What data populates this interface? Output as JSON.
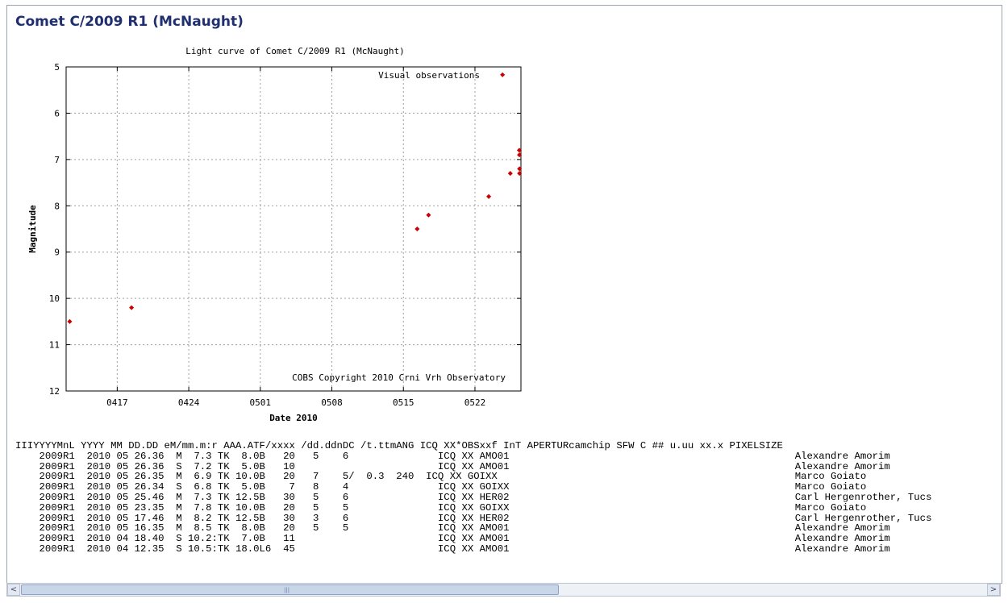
{
  "page": {
    "title": "Comet C/2009 R1 (McNaught)"
  },
  "chart_data": {
    "type": "scatter",
    "title": "Light curve of Comet C/2009 R1 (McNaught)",
    "xlabel": "Date 2010",
    "ylabel": "Magnitude",
    "x_unit": "date",
    "xlim": [
      "2010-04-12",
      "2010-05-26.5"
    ],
    "ylim": [
      12,
      5
    ],
    "y_inverted": true,
    "y_ticks": [
      5,
      6,
      7,
      8,
      9,
      10,
      11,
      12
    ],
    "x_ticks": [
      {
        "date": "2010-04-17",
        "label": "0417"
      },
      {
        "date": "2010-04-24",
        "label": "0424"
      },
      {
        "date": "2010-05-01",
        "label": "0501"
      },
      {
        "date": "2010-05-08",
        "label": "0508"
      },
      {
        "date": "2010-05-15",
        "label": "0515"
      },
      {
        "date": "2010-05-22",
        "label": "0522"
      }
    ],
    "grid": true,
    "legend_position": "top-right",
    "series": [
      {
        "name": "Visual observations",
        "color": "#cc0000",
        "points": [
          {
            "date": "2010-04-12.35",
            "mag": 10.5
          },
          {
            "date": "2010-04-18.40",
            "mag": 10.2
          },
          {
            "date": "2010-05-16.35",
            "mag": 8.5
          },
          {
            "date": "2010-05-17.46",
            "mag": 8.2
          },
          {
            "date": "2010-05-23.35",
            "mag": 7.8
          },
          {
            "date": "2010-05-24.70",
            "mag": 5.17
          },
          {
            "date": "2010-05-25.46",
            "mag": 7.3
          },
          {
            "date": "2010-05-26.34",
            "mag": 6.8
          },
          {
            "date": "2010-05-26.35",
            "mag": 6.9
          },
          {
            "date": "2010-05-26.36",
            "mag": 7.2
          },
          {
            "date": "2010-05-26.36",
            "mag": 7.3
          }
        ]
      }
    ],
    "annotation": "COBS Copyright 2010 Crni Vrh Observatory"
  },
  "observations": {
    "header": "IIIYYYYMnL YYYY MM DD.DD eM/mm.m:r AAA.ATF/xxxx /dd.ddnDC /t.ttmANG ICQ XX*OBSxxf InT APERTURcamchip SFW C ## u.uu xx.x PIXELSIZE",
    "rows": [
      {
        "line": "    2009R1  2010 05 26.36  M  7.3 TK  8.0B   20   5    6               ICQ XX AMO01",
        "observer": "Alexandre Amorim"
      },
      {
        "line": "    2009R1  2010 05 26.36  S  7.2 TK  5.0B   10                        ICQ XX AMO01",
        "observer": "Alexandre Amorim"
      },
      {
        "line": "    2009R1  2010 05 26.35  M  6.9 TK 10.0B   20   7    5/  0.3  240  ICQ XX GOIXX",
        "observer": "Marco Goiato"
      },
      {
        "line": "    2009R1  2010 05 26.34  S  6.8 TK  5.0B    7   8    4               ICQ XX GOIXX",
        "observer": "Marco Goiato"
      },
      {
        "line": "    2009R1  2010 05 25.46  M  7.3 TK 12.5B   30   5    6               ICQ XX HER02",
        "observer": "Carl Hergenrother, Tucs"
      },
      {
        "line": "    2009R1  2010 05 23.35  M  7.8 TK 10.0B   20   5    5               ICQ XX GOIXX",
        "observer": "Marco Goiato"
      },
      {
        "line": "    2009R1  2010 05 17.46  M  8.2 TK 12.5B   30   3    6               ICQ XX HER02",
        "observer": "Carl Hergenrother, Tucs"
      },
      {
        "line": "    2009R1  2010 05 16.35  M  8.5 TK  8.0B   20   5    5               ICQ XX AMO01",
        "observer": "Alexandre Amorim"
      },
      {
        "line": "    2009R1  2010 04 18.40  S 10.2:TK  7.0B   11                        ICQ XX AMO01",
        "observer": "Alexandre Amorim"
      },
      {
        "line": "    2009R1  2010 04 12.35  S 10.5:TK 18.0L6  45                        ICQ XX AMO01",
        "observer": "Alexandre Amorim"
      }
    ]
  },
  "scrollbar": {
    "left_arrow": "<",
    "right_arrow": ">",
    "grip": "|||"
  }
}
